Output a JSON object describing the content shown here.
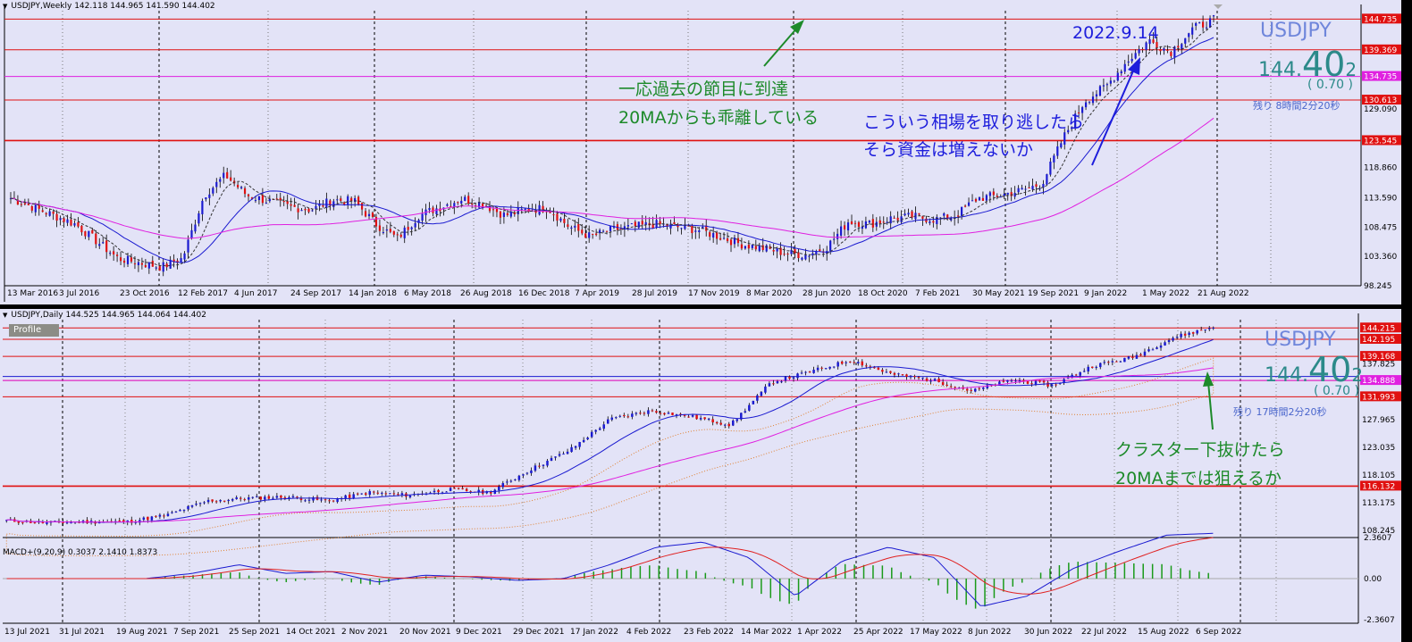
{
  "weekly": {
    "header": "USDJPY,Weekly  142.118 144.965 141.590 144.402",
    "symbol": "USDJPY",
    "price": {
      "a": "144.",
      "b": "40",
      "c": "2"
    },
    "change": "( 0.70 )",
    "remaining": "残り 8時間2分20秒",
    "date_note": "2022.9.14",
    "annotation1": [
      "一応過去の節目に到達",
      "20MAからも乖離している"
    ],
    "annotation2": [
      "こういう相場を取り逃したら",
      "そら資金は増えないか"
    ],
    "y_axis": [
      "144.735",
      "139.369",
      "134.735",
      "130.613",
      "129.090",
      "123.545",
      "118.860",
      "113.590",
      "108.475",
      "103.360",
      "98.245"
    ],
    "x_axis": [
      "13 Mar 2016",
      "3 Jul 2016",
      "23 Oct 2016",
      "12 Feb 2017",
      "4 Jun 2017",
      "24 Sep 2017",
      "14 Jan 2018",
      "6 May 2018",
      "26 Aug 2018",
      "16 Dec 2018",
      "7 Apr 2019",
      "28 Jul 2019",
      "17 Nov 2019",
      "8 Mar 2020",
      "28 Jun 2020",
      "18 Oct 2020",
      "7 Feb 2021",
      "30 May 2021",
      "19 Sep 2021",
      "9 Jan 2022",
      "1 May 2022",
      "21 Aug 2022"
    ]
  },
  "daily": {
    "header": "USDJPY,Daily  144.525 144.965 144.064 144.402",
    "profile": "Profile",
    "symbol": "USDJPY",
    "price": {
      "a": "144.",
      "b": "40",
      "c": "2"
    },
    "change": "( 0.70 )",
    "remaining": "残り 17時間2分20秒",
    "annotation": [
      "クラスター下抜けたら",
      "20MAまでは狙えるか"
    ],
    "y_axis": [
      "144.215",
      "142.195",
      "139.168",
      "137.825",
      "134.888",
      "131.993",
      "127.965",
      "123.035",
      "118.105",
      "116.132",
      "113.175",
      "108.245"
    ],
    "x_axis": [
      "13 Jul 2021",
      "31 Jul 2021",
      "19 Aug 2021",
      "7 Sep 2021",
      "25 Sep 2021",
      "14 Oct 2021",
      "2 Nov 2021",
      "20 Nov 2021",
      "9 Dec 2021",
      "29 Dec 2021",
      "17 Jan 2022",
      "4 Feb 2022",
      "23 Feb 2022",
      "14 Mar 2022",
      "1 Apr 2022",
      "25 Apr 2022",
      "17 May 2022",
      "8 Jun 2022",
      "30 Jun 2022",
      "22 Jul 2022",
      "15 Aug 2022",
      "6 Sep 2022"
    ]
  },
  "macd": {
    "header": "MACD+(9,20,9) 0.3037 2.1410 1.8373",
    "y_axis": [
      "2.3607",
      "0.00",
      "-2.3607"
    ]
  },
  "chart_data": [
    {
      "type": "candlestick",
      "title": "USDJPY,Weekly",
      "x_ticks": [
        "13 Mar 2016",
        "3 Jul 2016",
        "23 Oct 2016",
        "12 Feb 2017",
        "4 Jun 2017",
        "24 Sep 2017",
        "14 Jan 2018",
        "6 May 2018",
        "26 Aug 2018",
        "16 Dec 2018",
        "7 Apr 2019",
        "28 Jul 2019",
        "17 Nov 2019",
        "8 Mar 2020",
        "28 Jun 2020",
        "18 Oct 2020",
        "7 Feb 2021",
        "30 May 2021",
        "19 Sep 2021",
        "9 Jan 2022",
        "1 May 2022",
        "21 Aug 2022"
      ],
      "ylim": [
        98.245,
        146.5
      ],
      "horizontal_levels": [
        144.735,
        139.369,
        134.735,
        130.613,
        123.545
      ],
      "close_path": [
        [
          0,
          113.5
        ],
        [
          3,
          109.0
        ],
        [
          5,
          103.0
        ],
        [
          7,
          101.5
        ],
        [
          8,
          103.0
        ],
        [
          9,
          114.0
        ],
        [
          10,
          117.5
        ],
        [
          11,
          114.0
        ],
        [
          12,
          113.0
        ],
        [
          13,
          112.0
        ],
        [
          14,
          111.5
        ],
        [
          15,
          113.2
        ],
        [
          16,
          113.0
        ],
        [
          17,
          109.0
        ],
        [
          18,
          106.5
        ],
        [
          19,
          110.5
        ],
        [
          20,
          112.0
        ],
        [
          21,
          113.4
        ],
        [
          22,
          112.5
        ],
        [
          23,
          110.5
        ],
        [
          24,
          111.5
        ],
        [
          25,
          111.8
        ],
        [
          26,
          108.5
        ],
        [
          27,
          106.8
        ],
        [
          28,
          108.0
        ],
        [
          29,
          108.5
        ],
        [
          30,
          109.0
        ],
        [
          31,
          108.5
        ],
        [
          32,
          108.0
        ],
        [
          33,
          106.8
        ],
        [
          34,
          105.5
        ],
        [
          35,
          104.8
        ],
        [
          36,
          104.0
        ],
        [
          37,
          103.6
        ],
        [
          38,
          105.0
        ],
        [
          39,
          109.5
        ],
        [
          40,
          109.0
        ],
        [
          41,
          110.0
        ],
        [
          42,
          110.3
        ],
        [
          43,
          109.8
        ],
        [
          44,
          110.5
        ],
        [
          45,
          113.5
        ],
        [
          46,
          114.0
        ],
        [
          47,
          114.8
        ],
        [
          48,
          116.0
        ],
        [
          49,
          124.0
        ],
        [
          50,
          130.5
        ],
        [
          51,
          133.0
        ],
        [
          52,
          137.5
        ],
        [
          53,
          141.0
        ],
        [
          54,
          139.0
        ],
        [
          55,
          143.0
        ],
        [
          56,
          144.6
        ]
      ],
      "series": [
        {
          "name": "MA",
          "color": "#1a1ad0"
        },
        {
          "name": "MA",
          "color": "#e020e0"
        }
      ]
    },
    {
      "type": "candlestick",
      "title": "USDJPY,Daily",
      "x_ticks": [
        "13 Jul 2021",
        "31 Jul 2021",
        "19 Aug 2021",
        "7 Sep 2021",
        "25 Sep 2021",
        "14 Oct 2021",
        "2 Nov 2021",
        "20 Nov 2021",
        "9 Dec 2021",
        "29 Dec 2021",
        "17 Jan 2022",
        "4 Feb 2022",
        "23 Feb 2022",
        "14 Mar 2022",
        "1 Apr 2022",
        "25 Apr 2022",
        "17 May 2022",
        "8 Jun 2022",
        "30 Jun 2022",
        "22 Jul 2022",
        "15 Aug 2022",
        "6 Sep 2022"
      ],
      "ylim": [
        107.0,
        146.0
      ],
      "horizontal_levels": [
        144.215,
        142.195,
        139.168,
        134.888,
        131.993,
        116.132
      ],
      "close_path": [
        [
          0,
          110.0
        ],
        [
          1,
          109.6
        ],
        [
          2,
          109.8
        ],
        [
          3,
          109.8
        ],
        [
          4,
          111.0
        ],
        [
          5,
          113.5
        ],
        [
          6,
          114.0
        ],
        [
          7,
          114.2
        ],
        [
          8,
          113.5
        ],
        [
          9,
          115.0
        ],
        [
          10,
          114.5
        ],
        [
          11,
          115.5
        ],
        [
          12,
          115.0
        ],
        [
          13,
          119.0
        ],
        [
          14,
          122.5
        ],
        [
          15,
          128.0
        ],
        [
          16,
          129.5
        ],
        [
          17,
          128.5
        ],
        [
          18,
          127.0
        ],
        [
          19,
          134.5
        ],
        [
          20,
          136.5
        ],
        [
          21,
          138.5
        ],
        [
          22,
          136.0
        ],
        [
          23,
          135.0
        ],
        [
          24,
          133.0
        ],
        [
          25,
          135.0
        ],
        [
          26,
          134.0
        ],
        [
          27,
          137.5
        ],
        [
          28,
          139.0
        ],
        [
          29,
          142.5
        ],
        [
          30,
          144.4
        ]
      ],
      "series": [
        {
          "name": "MA",
          "color": "#1a1ad0"
        },
        {
          "name": "MA",
          "color": "#e020e0"
        }
      ]
    },
    {
      "type": "line",
      "title": "MACD+(9,20,9) 0.3037 2.1410 1.8373",
      "ylim": [
        -2.3607,
        2.3607
      ],
      "series": [
        {
          "name": "MACD",
          "color": "#1a1ad0"
        },
        {
          "name": "Signal",
          "color": "#e02020"
        },
        {
          "name": "Histogram",
          "color": "#1a9a1a"
        }
      ]
    }
  ]
}
